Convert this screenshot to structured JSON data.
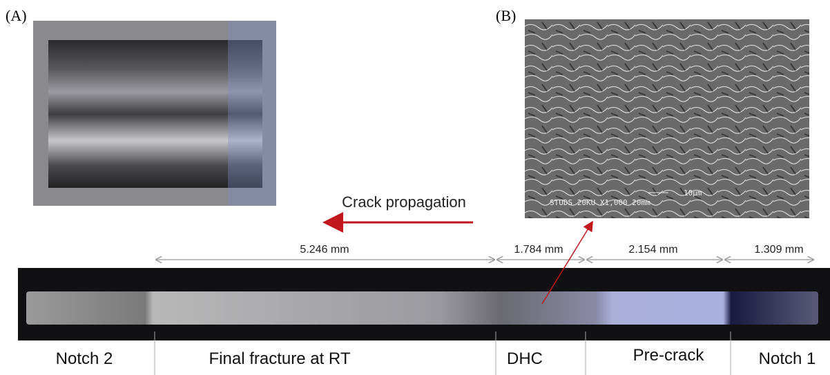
{
  "panels": {
    "a": "(A)",
    "b": "(B)"
  },
  "sem_labels": {
    "scale": "10μm",
    "info": "STUDS  20KU  X1,000  20mm"
  },
  "arrow_label": "Crack propagation",
  "dimensions": [
    "5.246 mm",
    "1.784 mm",
    "2.154 mm",
    "1.309 mm"
  ],
  "regions": [
    "Notch 2",
    "Final fracture at RT",
    "DHC",
    "Pre-crack",
    "Notch 1"
  ]
}
